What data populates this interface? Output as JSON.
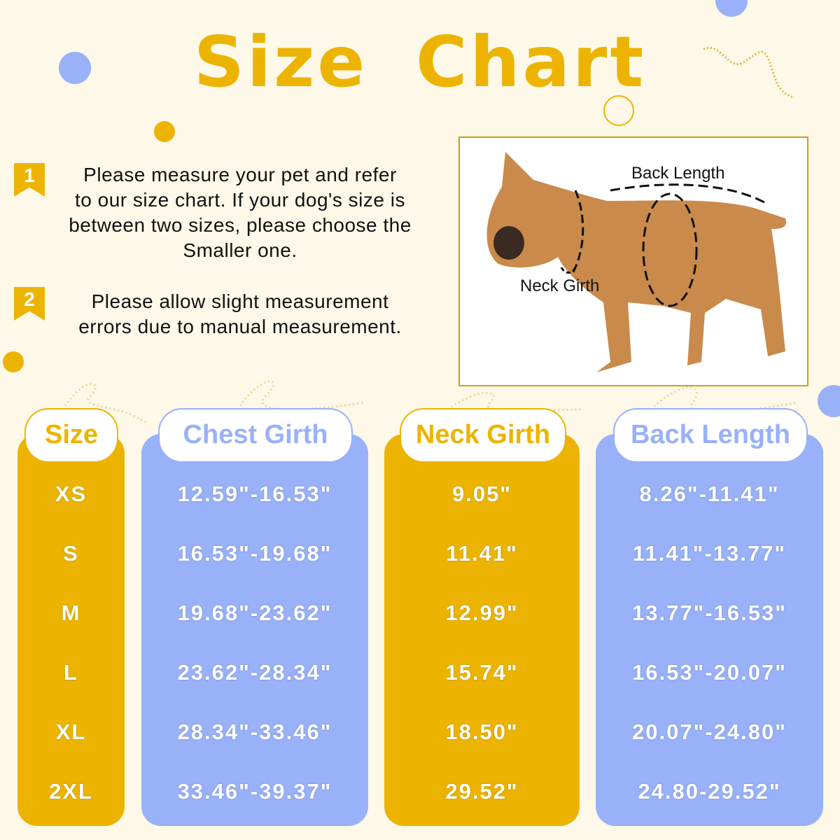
{
  "title": "Size Chart",
  "notes": [
    {
      "number": "1",
      "lines": [
        "Please measure your pet and refer",
        "to our size chart. If your dog's size is",
        "between two sizes,  please choose the",
        "Smaller one."
      ]
    },
    {
      "number": "2",
      "lines": [
        "Please allow slight measurement",
        "errors due to manual measurement."
      ]
    }
  ],
  "diagram": {
    "back_length_label": "Back Length",
    "neck_girth_label": "Neck Girth"
  },
  "colors": {
    "background": "#fdf8e8",
    "gold": "#ecb400",
    "blue": "#98b1f8"
  },
  "table": {
    "headers": [
      "Size",
      "Chest Girth",
      "Neck Girth",
      "Back Length"
    ],
    "rows": [
      [
        "XS",
        "12.59\"-16.53\"",
        "9.05\"",
        "8.26\"-11.41\""
      ],
      [
        "S",
        "16.53\"-19.68\"",
        "11.41\"",
        "11.41\"-13.77\""
      ],
      [
        "M",
        "19.68\"-23.62\"",
        "12.99\"",
        "13.77\"-16.53\""
      ],
      [
        "L",
        "23.62\"-28.34\"",
        "15.74\"",
        "16.53\"-20.07\""
      ],
      [
        "XL",
        "28.34\"-33.46\"",
        "18.50\"",
        "20.07\"-24.80\""
      ],
      [
        "2XL",
        "33.46\"-39.37\"",
        "29.52\"",
        "24.80-29.52\""
      ]
    ]
  }
}
